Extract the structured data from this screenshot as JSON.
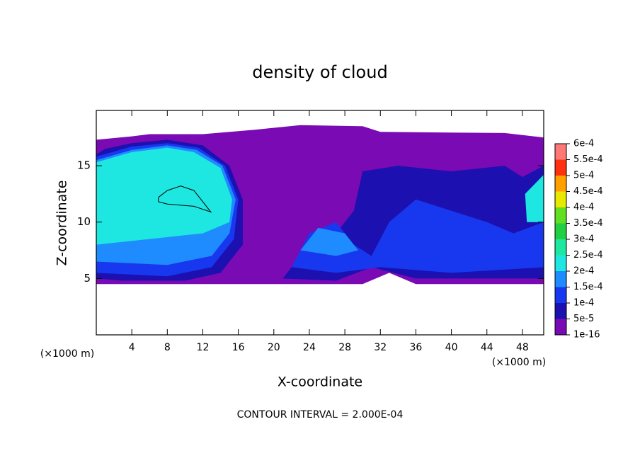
{
  "chart_data": {
    "type": "contour",
    "title": "density of cloud",
    "xlabel": "X-coordinate",
    "ylabel": "Z-coordinate",
    "x_unit": "(×1000 m)",
    "y_unit": "(×1000 m)",
    "footnote": "CONTOUR INTERVAL = 2.000E-04",
    "xlim": [
      0,
      50.4
    ],
    "ylim": [
      0,
      19.9
    ],
    "xticks": [
      4,
      8,
      12,
      16,
      20,
      24,
      28,
      32,
      36,
      40,
      44,
      48
    ],
    "yticks": [
      5,
      10,
      15
    ],
    "levels": [
      {
        "value": 1e-16,
        "label": "1e-16"
      },
      {
        "value": 5e-05,
        "label": "5e-5"
      },
      {
        "value": 0.0001,
        "label": "1e-4"
      },
      {
        "value": 0.00015,
        "label": "1.5e-4"
      },
      {
        "value": 0.0002,
        "label": "2e-4"
      },
      {
        "value": 0.00025,
        "label": "2.5e-4"
      },
      {
        "value": 0.0003,
        "label": "3e-4"
      },
      {
        "value": 0.00035,
        "label": "3.5e-4"
      },
      {
        "value": 0.0004,
        "label": "4e-4"
      },
      {
        "value": 0.00045,
        "label": "4.5e-4"
      },
      {
        "value": 0.0005,
        "label": "5e-4"
      },
      {
        "value": 0.00055,
        "label": "5.5e-4"
      },
      {
        "value": 0.0006,
        "label": "6e-4"
      }
    ],
    "level_colors": [
      "#7a0ab4",
      "#1c10b0",
      "#1838f0",
      "#1e8cff",
      "#1ee6e0",
      "#1ee8a0",
      "#20d040",
      "#60e020",
      "#e8e800",
      "#ffa000",
      "#ff3010",
      "#ff7878"
    ],
    "regions": [
      {
        "level": 1e-16,
        "points": [
          [
            0,
            4.5
          ],
          [
            0,
            17.3
          ],
          [
            4,
            17.6
          ],
          [
            6,
            17.8
          ],
          [
            12,
            17.8
          ],
          [
            18,
            18.2
          ],
          [
            23,
            18.6
          ],
          [
            30,
            18.5
          ],
          [
            32,
            18.0
          ],
          [
            46,
            17.9
          ],
          [
            50.4,
            17.5
          ],
          [
            50.4,
            4.5
          ],
          [
            36,
            4.5
          ],
          [
            33,
            5.5
          ],
          [
            30,
            4.5
          ]
        ]
      },
      {
        "level": 5e-05,
        "points": [
          [
            0,
            5
          ],
          [
            3,
            4.8
          ],
          [
            10,
            4.8
          ],
          [
            14,
            5.5
          ],
          [
            16.5,
            8
          ],
          [
            16.5,
            12
          ],
          [
            15,
            15
          ],
          [
            12,
            16.8
          ],
          [
            8,
            17.3
          ],
          [
            4,
            17
          ],
          [
            1,
            16.5
          ],
          [
            0,
            16
          ]
        ]
      },
      {
        "level": 5e-05,
        "points": [
          [
            21,
            5
          ],
          [
            24,
            8
          ],
          [
            27,
            9
          ],
          [
            29,
            11
          ],
          [
            30,
            14.5
          ],
          [
            34,
            15
          ],
          [
            40,
            14.5
          ],
          [
            46,
            15
          ],
          [
            48,
            14
          ],
          [
            50.4,
            15
          ],
          [
            50.4,
            5
          ],
          [
            36,
            5
          ],
          [
            31,
            6
          ],
          [
            27,
            4.8
          ]
        ]
      },
      {
        "level": 0.0001,
        "points": [
          [
            0,
            5.5
          ],
          [
            8,
            5.2
          ],
          [
            13,
            6
          ],
          [
            15.5,
            8.5
          ],
          [
            16,
            12
          ],
          [
            14.5,
            15
          ],
          [
            11.5,
            16.6
          ],
          [
            8,
            17
          ],
          [
            4,
            16.7
          ],
          [
            0,
            15.8
          ]
        ]
      },
      {
        "level": 0.0001,
        "points": [
          [
            22,
            6
          ],
          [
            24,
            9
          ],
          [
            27,
            10
          ],
          [
            29,
            8
          ],
          [
            31,
            7
          ],
          [
            33,
            10
          ],
          [
            36,
            12
          ],
          [
            40,
            11
          ],
          [
            44,
            10
          ],
          [
            47,
            9
          ],
          [
            50.4,
            10
          ],
          [
            50.4,
            6
          ],
          [
            40,
            5.5
          ],
          [
            32,
            6
          ],
          [
            27,
            5.5
          ]
        ]
      },
      {
        "level": 0.00015,
        "points": [
          [
            0,
            6.5
          ],
          [
            8,
            6.2
          ],
          [
            13,
            7
          ],
          [
            15,
            9
          ],
          [
            15.7,
            12
          ],
          [
            14.2,
            15
          ],
          [
            11.3,
            16.4
          ],
          [
            8,
            16.8
          ],
          [
            4,
            16.4
          ],
          [
            0,
            15.5
          ]
        ]
      },
      {
        "level": 0.00015,
        "points": [
          [
            23,
            7.5
          ],
          [
            25,
            9.5
          ],
          [
            28,
            9
          ],
          [
            29.5,
            7.5
          ],
          [
            27,
            7
          ]
        ]
      },
      {
        "level": 0.0002,
        "points": [
          [
            0,
            8
          ],
          [
            6,
            8.5
          ],
          [
            12,
            9
          ],
          [
            15,
            10
          ],
          [
            15.3,
            12
          ],
          [
            14,
            14.8
          ],
          [
            11,
            16.2
          ],
          [
            8,
            16.6
          ],
          [
            4,
            16.2
          ],
          [
            0,
            15.3
          ]
        ]
      },
      {
        "level": 0.0002,
        "points": [
          [
            48.5,
            10
          ],
          [
            48.3,
            12.5
          ],
          [
            50.4,
            14.2
          ],
          [
            50.4,
            10
          ]
        ]
      }
    ],
    "contour_lines": [
      {
        "level": 0.0002,
        "points": [
          [
            7,
            12.2
          ],
          [
            8,
            12.8
          ],
          [
            9.5,
            13.2
          ],
          [
            11,
            12.8
          ],
          [
            12.9,
            10.9
          ],
          [
            11,
            11.4
          ],
          [
            8,
            11.6
          ],
          [
            7,
            11.8
          ],
          [
            7,
            12.2
          ]
        ]
      }
    ]
  }
}
